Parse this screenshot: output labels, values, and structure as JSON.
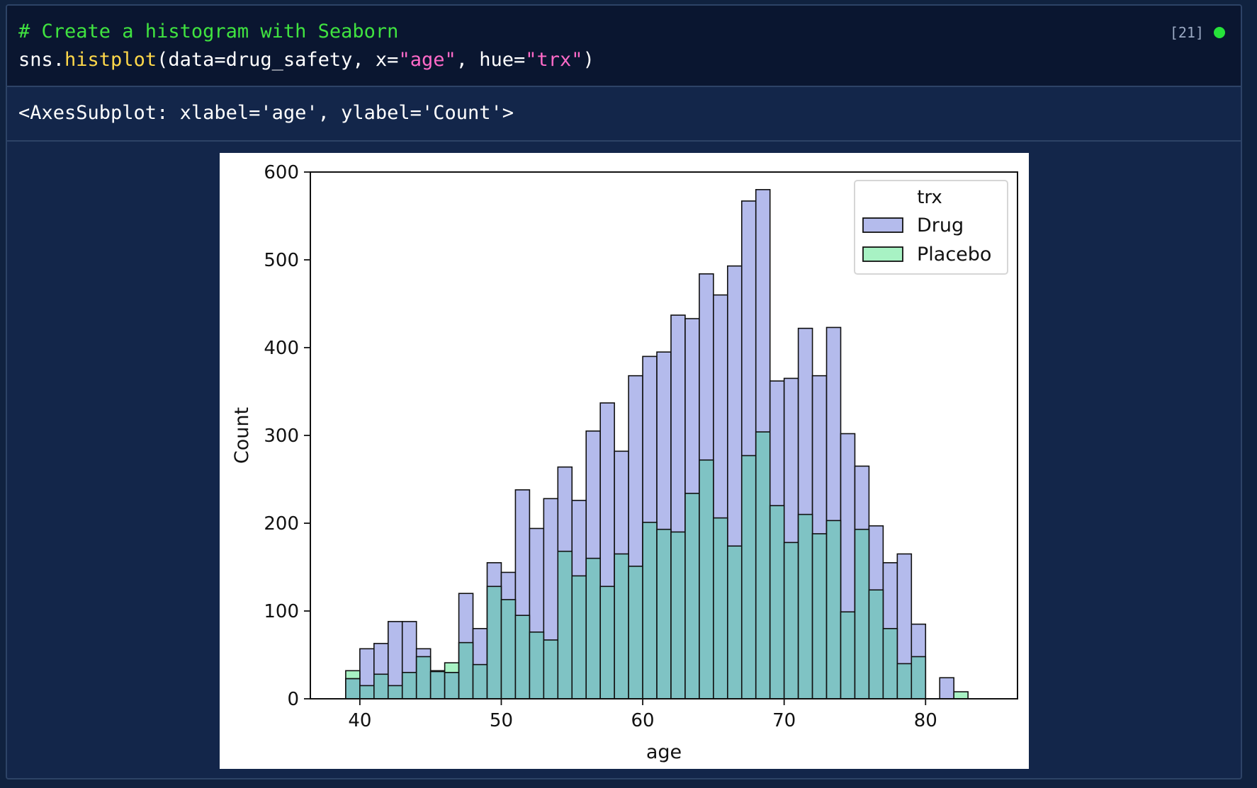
{
  "cell": {
    "exec_count": "[21]",
    "status_color": "#26e23a",
    "code": {
      "comment": "# Create a histogram with Seaborn",
      "line2": {
        "prefix": "sns.",
        "func": "histplot",
        "open": "(data=drug_safety, x=",
        "arg1": "\"age\"",
        "mid": ", hue=",
        "arg2": "\"trx\"",
        "close": ")"
      }
    },
    "output_text": "<AxesSubplot: xlabel='age', ylabel='Count'>"
  },
  "chart_data": {
    "type": "bar",
    "subtype": "stacked histogram (overlay)",
    "xlabel": "age",
    "ylabel": "Count",
    "xlim": [
      36.5,
      86.5
    ],
    "ylim": [
      0,
      600
    ],
    "x_ticks": [
      40,
      50,
      60,
      70,
      80
    ],
    "y_ticks": [
      0,
      100,
      200,
      300,
      400,
      500,
      600
    ],
    "grid": false,
    "bin_width": 1,
    "bin_start": 39,
    "legend": {
      "title": "trx",
      "placement": "upper right",
      "entries": [
        "Drug",
        "Placebo"
      ]
    },
    "series": [
      {
        "name": "Drug",
        "color": "#b4bbec",
        "values": [
          23,
          57,
          63,
          88,
          88,
          57,
          32,
          30,
          120,
          80,
          155,
          144,
          238,
          194,
          228,
          264,
          226,
          305,
          337,
          282,
          368,
          390,
          395,
          437,
          433,
          484,
          460,
          493,
          567,
          580,
          362,
          365,
          422,
          368,
          423,
          302,
          265,
          197,
          155,
          165,
          85,
          0,
          24,
          0
        ]
      },
      {
        "name": "Placebo",
        "color": "#a8f2c4",
        "values": [
          32,
          15,
          28,
          15,
          30,
          48,
          31,
          41,
          64,
          39,
          128,
          113,
          95,
          76,
          67,
          168,
          140,
          160,
          128,
          165,
          151,
          201,
          193,
          190,
          234,
          272,
          206,
          174,
          277,
          304,
          220,
          178,
          210,
          188,
          203,
          99,
          193,
          124,
          80,
          40,
          48,
          0,
          0,
          8
        ]
      }
    ]
  }
}
